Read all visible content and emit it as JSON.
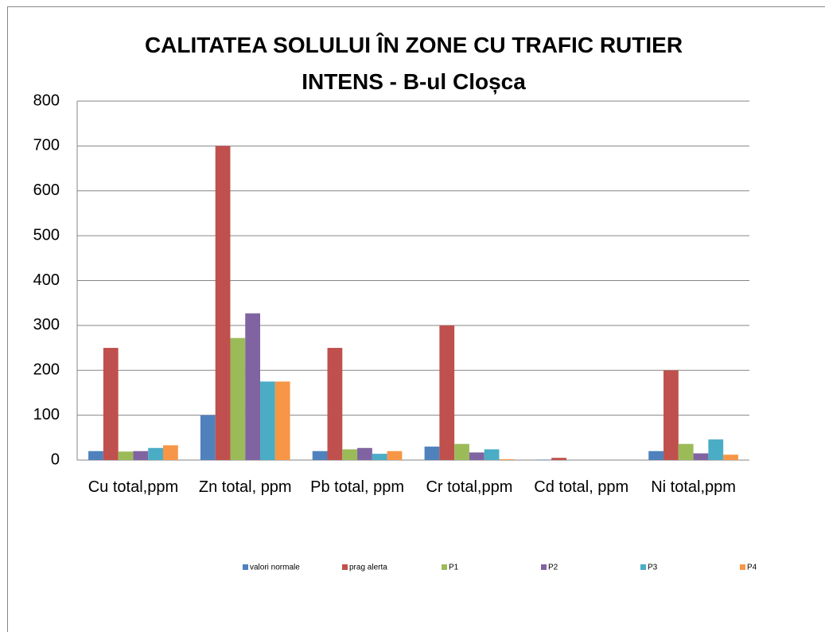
{
  "chart_data": {
    "type": "bar",
    "title": "CALITATEA SOLULUI ÎN ZONE CU TRAFIC RUTIER INTENS - B-ul Cloșca",
    "categories": [
      "Cu total,ppm",
      "Zn total, ppm",
      "Pb total, ppm",
      "Cr total,ppm",
      "Cd total, ppm",
      "Ni total,ppm"
    ],
    "series": [
      {
        "name": "valori normale",
        "color": "#4f81bd",
        "values": [
          20,
          100,
          20,
          30,
          1,
          20
        ]
      },
      {
        "name": "prag alerta",
        "color": "#c0504d",
        "values": [
          250,
          700,
          250,
          300,
          5,
          200
        ]
      },
      {
        "name": "P1",
        "color": "#9bbb59",
        "values": [
          19,
          272,
          24,
          36,
          0,
          36
        ]
      },
      {
        "name": "P2",
        "color": "#8064a2",
        "values": [
          20,
          327,
          27,
          17,
          0,
          15
        ]
      },
      {
        "name": "P3",
        "color": "#4bacc6",
        "values": [
          27,
          175,
          14,
          24,
          0,
          46
        ]
      },
      {
        "name": "P4",
        "color": "#f79646",
        "values": [
          33,
          175,
          20,
          2,
          0,
          12
        ]
      }
    ],
    "ylim": [
      0,
      800
    ],
    "yticks": [
      0,
      100,
      200,
      300,
      400,
      500,
      600,
      700,
      800
    ],
    "grid": true,
    "legend": "bottom"
  }
}
